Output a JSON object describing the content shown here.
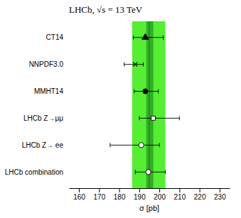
{
  "chart_data": {
    "type": "scatter",
    "orientation": "horizontal",
    "title": "LHCb, √s = 13 TeV",
    "xlabel": "σ [pb]",
    "categories": [
      "CT14",
      "NNPDF3.0",
      "MMHT14",
      "LHCb Z→μμ",
      "LHCb Z→ ee",
      "LHCb combination"
    ],
    "values": [
      193.0,
      188.0,
      193.0,
      197.0,
      191.0,
      194.5
    ],
    "error_lo": [
      6.0,
      5.5,
      5.5,
      7.0,
      15.5,
      6.5
    ],
    "error_hi": [
      9.0,
      4.0,
      6.5,
      13.0,
      9.0,
      8.5
    ],
    "markers": [
      "triangle-filled",
      "x",
      "circle-filled",
      "square-open",
      "circle-open",
      "circle-open"
    ],
    "bands": [
      {
        "lo": 186.5,
        "hi": 203.0,
        "color": "#55ee33"
      },
      {
        "lo": 193.5,
        "hi": 197.0,
        "color": "#228B22"
      }
    ],
    "band_center": 195.0,
    "xlim": [
      155,
      235
    ],
    "xticks": [
      160,
      170,
      180,
      190,
      200,
      210,
      220,
      230
    ],
    "grid": false
  }
}
